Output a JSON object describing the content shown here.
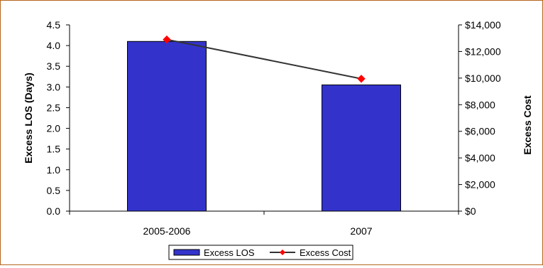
{
  "chart_data": {
    "type": "bar",
    "categories": [
      "2005-2006",
      "2007"
    ],
    "series": [
      {
        "name": "Excess LOS",
        "type": "bar",
        "axis": "left",
        "values": [
          4.1,
          3.05
        ],
        "color": "#3333cc"
      },
      {
        "name": "Excess Cost",
        "type": "line",
        "axis": "right",
        "values": [
          12900,
          9950
        ],
        "line_color": "#333333",
        "marker_color": "#ff0000"
      }
    ],
    "ylabel": "Excess LOS (Days)",
    "ylabel_right": "Excess Cost",
    "ylim": [
      0,
      4.5
    ],
    "ylim_right": [
      0,
      14000
    ],
    "y_ticks": [
      "0.0",
      "0.5",
      "1.0",
      "1.5",
      "2.0",
      "2.5",
      "3.0",
      "3.5",
      "4.0",
      "4.5"
    ],
    "y_ticks_right": [
      "$0",
      "$2,000",
      "$4,000",
      "$6,000",
      "$8,000",
      "$10,000",
      "$12,000",
      "$14,000"
    ],
    "grid": false,
    "legend_position": "bottom",
    "legend": [
      "Excess LOS",
      "Excess Cost"
    ]
  }
}
